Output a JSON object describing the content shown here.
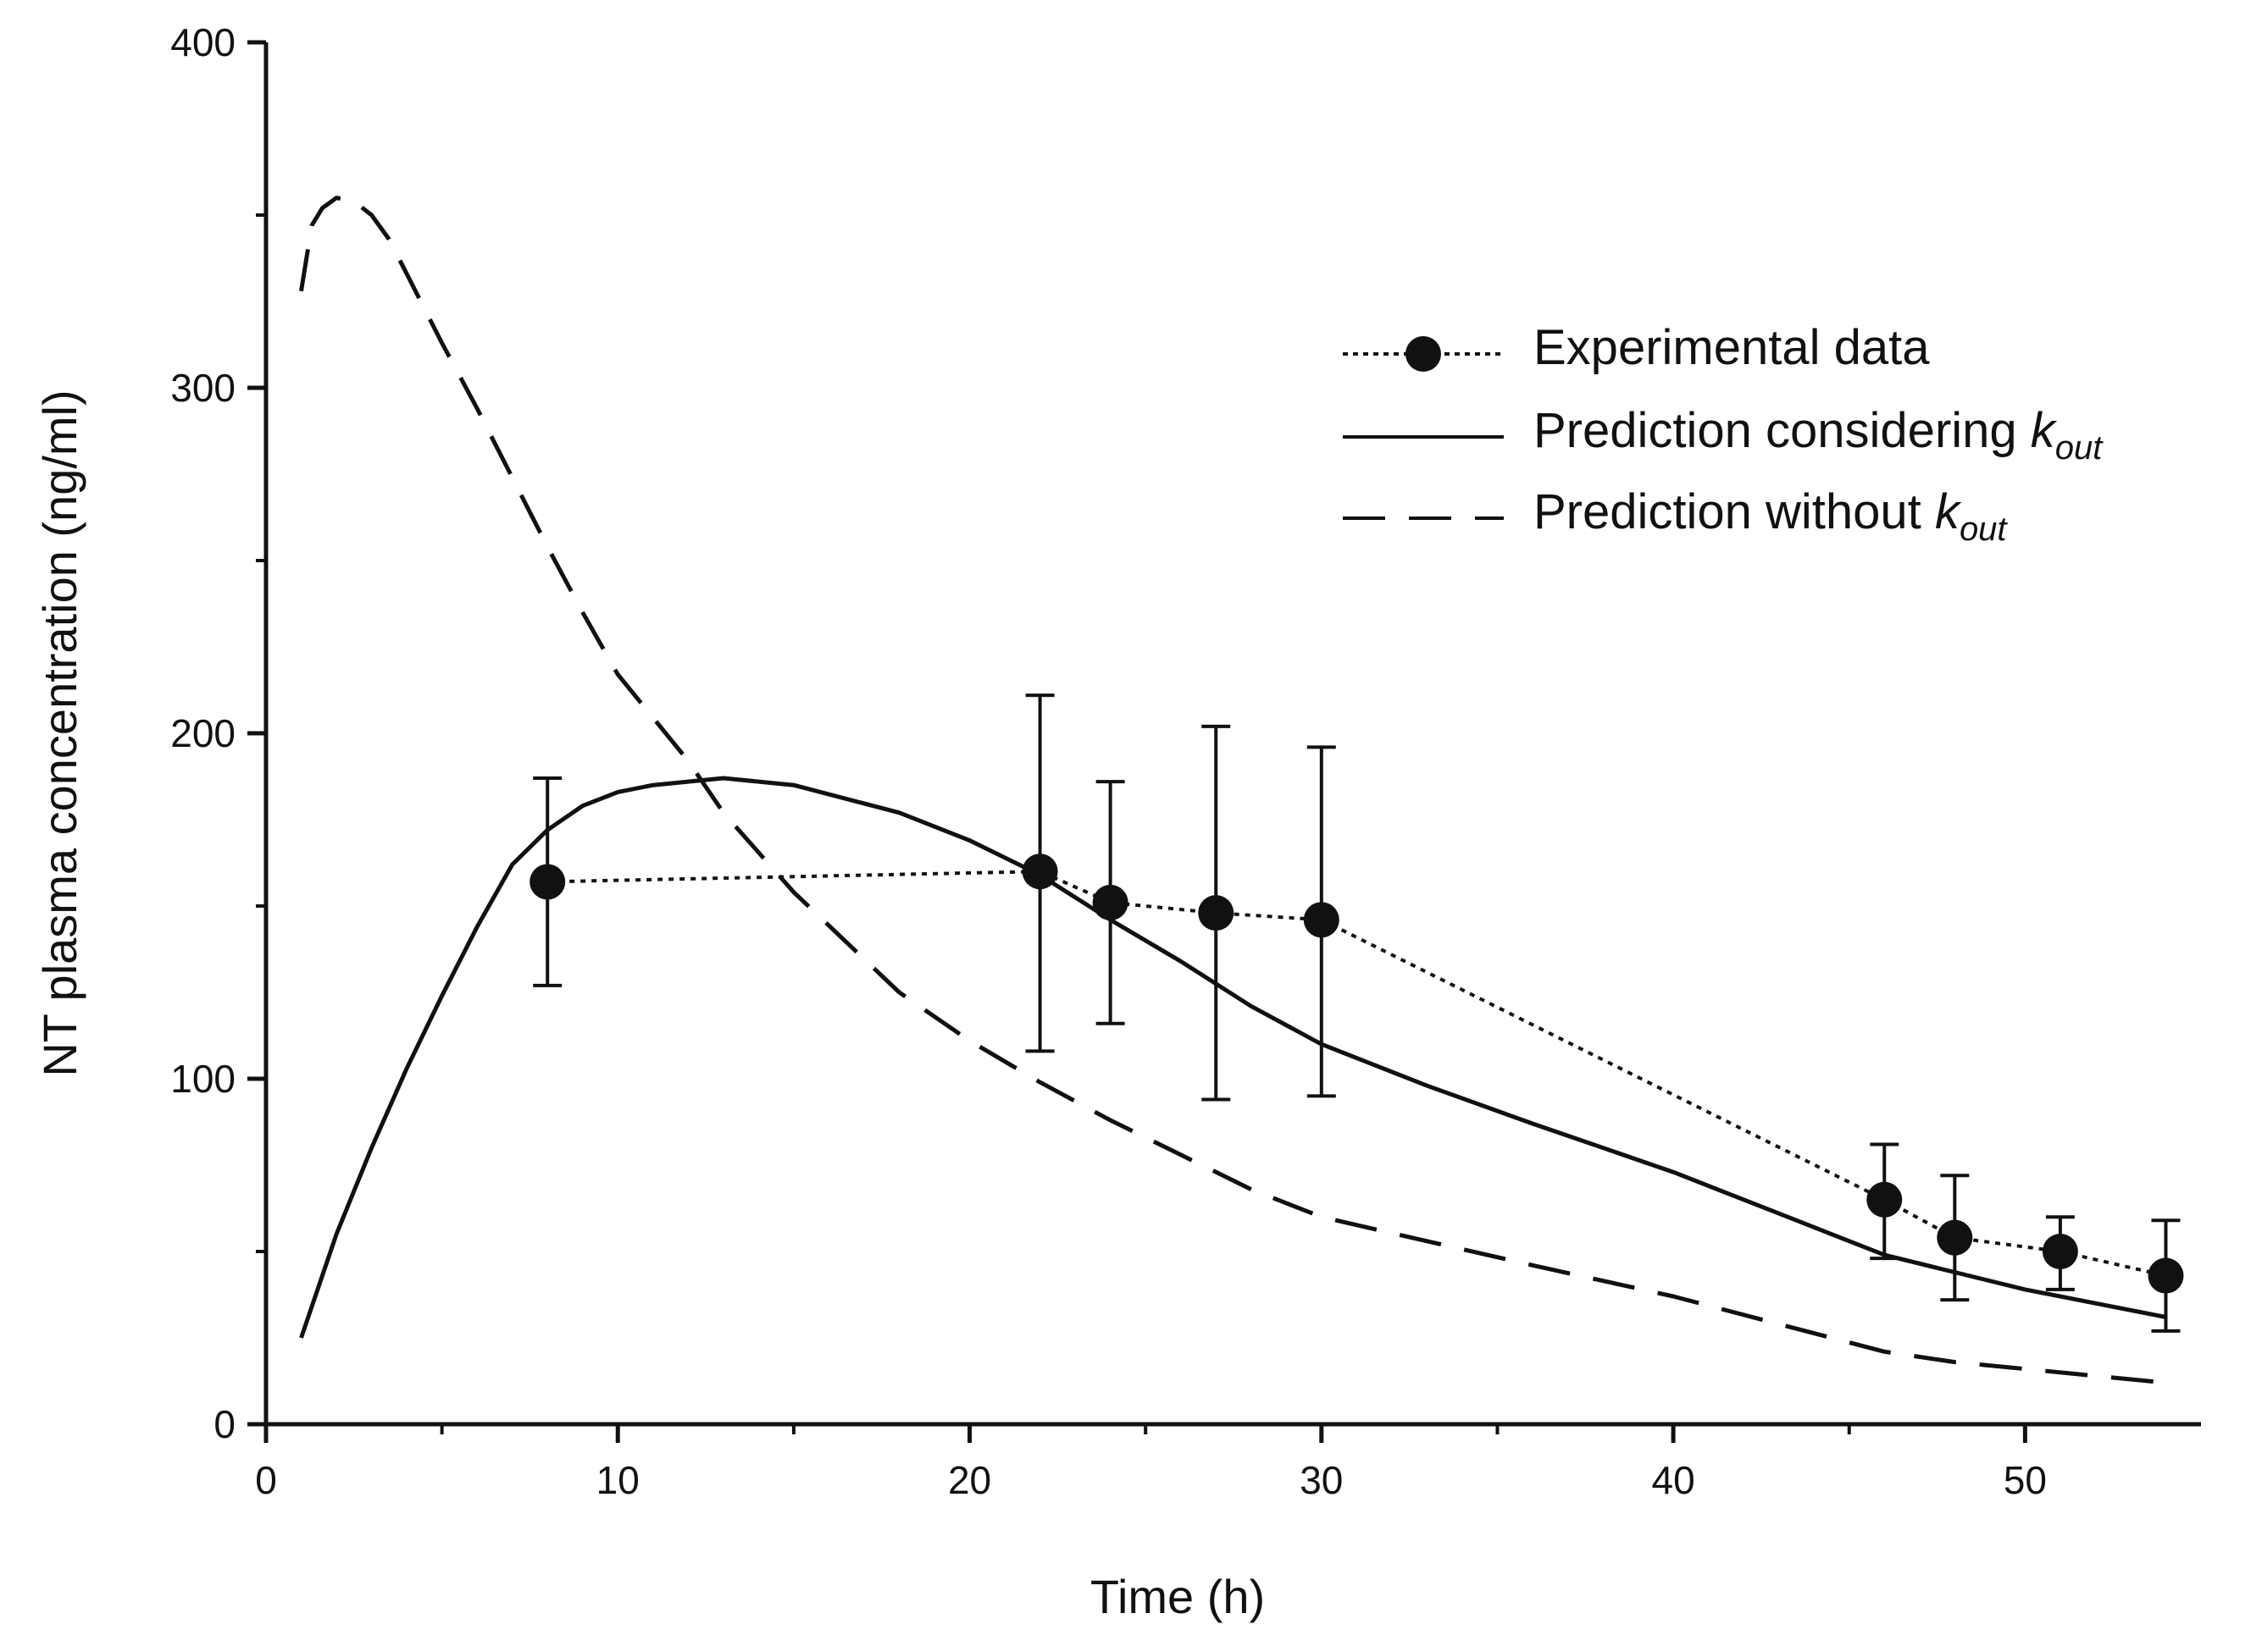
{
  "chart_data": {
    "type": "line",
    "title": "",
    "xlabel": "Time (h)",
    "ylabel": "NT plasma concentration (ng/ml)",
    "xlim": [
      0,
      55
    ],
    "ylim": [
      0,
      400
    ],
    "x_ticks": [
      0,
      10,
      20,
      30,
      40,
      50
    ],
    "x_tick_labels": [
      "0",
      "10",
      "20",
      "30",
      "40",
      "50"
    ],
    "x_minor_ticks": [
      5,
      15,
      25,
      35,
      45
    ],
    "y_ticks": [
      0,
      100,
      200,
      300,
      400
    ],
    "y_tick_labels": [
      "0",
      "100",
      "200",
      "300",
      "400"
    ],
    "y_minor_ticks": [
      50,
      150,
      250,
      350
    ],
    "grid": false,
    "legend_position": "top-right",
    "series": [
      {
        "name": "Experimental data",
        "style": "dotted-with-markers",
        "x": [
          8,
          22,
          24,
          27,
          30,
          46,
          48,
          51,
          54
        ],
        "y": [
          157,
          160,
          151,
          148,
          146,
          65,
          54,
          50,
          43
        ],
        "error_low": [
          127,
          108,
          116,
          94,
          95,
          48,
          36,
          39,
          27
        ],
        "error_high": [
          187,
          211,
          186,
          202,
          196,
          81,
          72,
          60,
          59
        ]
      },
      {
        "name": "Prediction considering",
        "subscript": "out",
        "symbol": "k",
        "style": "solid",
        "x": [
          1,
          2,
          3,
          4,
          5,
          6,
          7,
          8,
          9,
          10,
          11,
          12,
          13,
          15,
          18,
          20,
          22,
          24,
          26,
          28,
          30,
          33,
          36,
          40,
          43,
          46,
          48,
          50,
          52,
          54
        ],
        "y": [
          25,
          55,
          80,
          103,
          124,
          144,
          162,
          172,
          179,
          183,
          185,
          186,
          187,
          185,
          177,
          169,
          159,
          146,
          134,
          121,
          110,
          98,
          87,
          73,
          61,
          49,
          44,
          39,
          35,
          31
        ]
      },
      {
        "name": "Prediction without",
        "subscript": "out",
        "symbol": "k",
        "style": "dashed",
        "x": [
          1,
          1.3,
          1.6,
          2,
          2.5,
          3,
          3.5,
          4,
          5,
          6,
          7,
          8,
          9,
          10,
          12,
          13,
          15,
          18,
          20,
          22,
          24,
          26,
          28,
          30,
          33,
          36,
          40,
          43,
          46,
          48,
          50,
          52,
          54
        ],
        "y": [
          328,
          347,
          352,
          355,
          354,
          350,
          343,
          333,
          313,
          294,
          274,
          254,
          235,
          217,
          192,
          177,
          154,
          125,
          111,
          99,
          88,
          78,
          68,
          60,
          53,
          46,
          37,
          29,
          21,
          18,
          16,
          14,
          12
        ]
      }
    ]
  }
}
